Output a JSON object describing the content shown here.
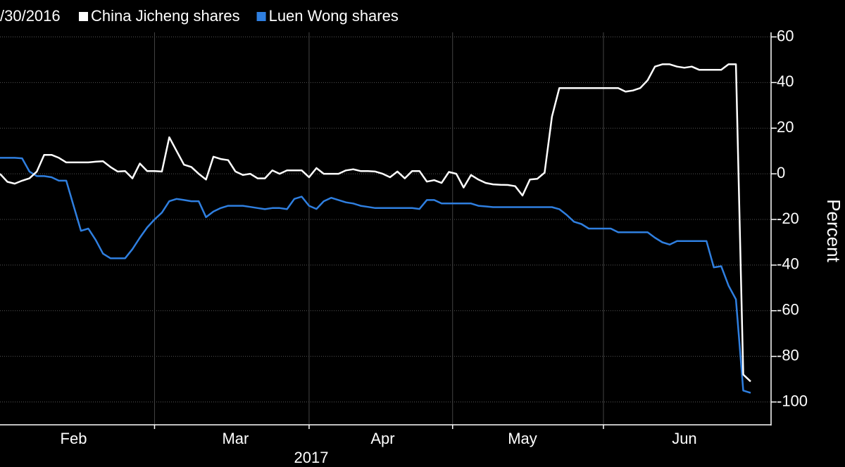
{
  "chart_data": {
    "type": "line",
    "subtitle": "/30/2016",
    "ylabel": "Percent",
    "year_label": "2017",
    "categories": [
      null,
      null,
      null,
      null,
      null,
      null,
      null,
      null,
      null,
      null,
      "Feb",
      null,
      null,
      null,
      null,
      null,
      null,
      null,
      null,
      null,
      null,
      null,
      null,
      null,
      null,
      null,
      null,
      null,
      null,
      null,
      null,
      null,
      "Mar",
      null,
      null,
      null,
      null,
      null,
      null,
      null,
      null,
      null,
      null,
      null,
      null,
      null,
      null,
      null,
      null,
      null,
      null,
      null,
      "Apr",
      null,
      null,
      null,
      null,
      null,
      null,
      null,
      null,
      null,
      null,
      null,
      null,
      null,
      null,
      null,
      null,
      null,
      null,
      "May",
      null,
      null,
      null,
      null,
      null,
      null,
      null,
      null,
      null,
      null,
      null,
      null,
      null,
      null,
      null,
      null,
      null,
      null,
      null,
      null,
      null,
      "Jun",
      null,
      null,
      null,
      null,
      null,
      null,
      null,
      null,
      null
    ],
    "series": [
      {
        "name": "China Jicheng shares",
        "color": "#ffffff",
        "values": [
          0,
          -3.5,
          -4.3,
          -3,
          -2,
          1,
          8.3,
          8.3,
          7,
          5,
          5,
          5,
          5,
          5.3,
          5.5,
          3,
          1,
          1.2,
          -2,
          4.5,
          1.2,
          1.2,
          1,
          16,
          10,
          4,
          3,
          0,
          -2.5,
          7.5,
          6.5,
          6,
          1,
          -0.5,
          0,
          -2,
          -2,
          1.5,
          0,
          1.5,
          1.5,
          1.5,
          -1.5,
          2.5,
          0,
          0,
          0,
          1.5,
          2,
          1.2,
          1.2,
          1,
          0,
          -1.5,
          1,
          -2,
          1.2,
          1.2,
          -3.4,
          -2.8,
          -4,
          0.8,
          0,
          -6,
          -0.5,
          -2.5,
          -4,
          -4.6,
          -4.8,
          -4.9,
          -5.4,
          -9.5,
          -2.5,
          -2.2,
          0.5,
          25,
          37.6,
          37.6,
          37.6,
          37.6,
          37.6,
          37.6,
          37.6,
          37.6,
          37.6,
          36,
          36.5,
          37.6,
          41,
          47,
          48,
          48,
          47,
          46.5,
          47,
          45.6,
          45.6,
          45.6,
          45.6,
          48,
          48,
          -88,
          -91
        ]
      },
      {
        "name": "Luen Wong shares",
        "color": "#2f7fe0",
        "values": [
          7,
          7,
          7,
          6.8,
          1,
          -1,
          -1,
          -1.5,
          -3,
          -3,
          -14,
          -25,
          -24,
          -29,
          -35,
          -37,
          -37,
          -37,
          -33,
          -28,
          -23.5,
          -20,
          -17,
          -12,
          -11,
          -11.5,
          -12,
          -12,
          -19,
          -16.5,
          -15,
          -14,
          -14,
          -14,
          -14.5,
          -15,
          -15.5,
          -15,
          -15,
          -15.5,
          -11,
          -10,
          -14,
          -15.4,
          -12,
          -10.5,
          -11.5,
          -12.5,
          -13,
          -14,
          -14.5,
          -15,
          -15,
          -15,
          -15,
          -15,
          -15,
          -15.4,
          -11.5,
          -11.5,
          -13,
          -13,
          -13,
          -13,
          -13,
          -14,
          -14.3,
          -14.6,
          -14.6,
          -14.6,
          -14.6,
          -14.6,
          -14.6,
          -14.6,
          -14.6,
          -14.6,
          -15.5,
          -18,
          -21,
          -22,
          -24,
          -24,
          -24,
          -24,
          -25.6,
          -25.6,
          -25.6,
          -25.6,
          -25.6,
          -28,
          -30,
          -31,
          -29.5,
          -29.5,
          -29.5,
          -29.5,
          -29.5,
          -41,
          -40.5,
          -49,
          -55,
          -95,
          -96
        ]
      }
    ],
    "ylim": [
      -110,
      62
    ],
    "yticks": [
      -100,
      -80,
      -60,
      -40,
      -20,
      0,
      20,
      40,
      60
    ],
    "grid": true
  }
}
